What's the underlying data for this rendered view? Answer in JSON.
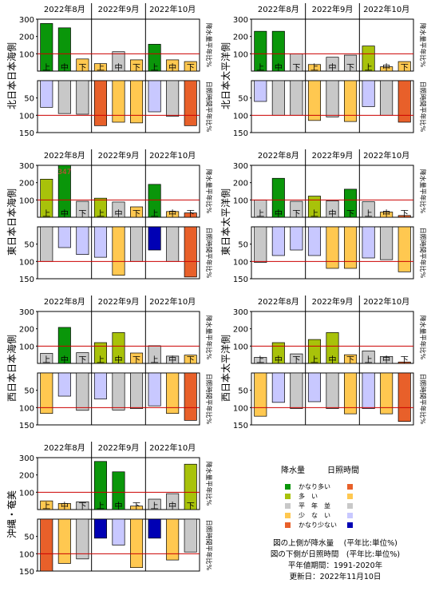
{
  "colors": {
    "very_high": "#0a960a",
    "high": "#a8c20a",
    "normal": "#c8c8c8",
    "low": "#ffc850",
    "very_low": "#e8602a",
    "low_sun": "#c8c8ff",
    "very_low_sun": "#0000b4",
    "normal_line": "#cc0000"
  },
  "legend": {
    "header_precip": "降水量",
    "header_sun": "日照時間",
    "items": [
      {
        "label": "かなり多い",
        "precip": "very_high",
        "sun": "very_low"
      },
      {
        "label": "多　い",
        "precip": "high",
        "sun": "low"
      },
      {
        "label": "平　年　並",
        "precip": "normal",
        "sun": "normal"
      },
      {
        "label": "少　な　い",
        "precip": "low",
        "sun": "low_sun"
      },
      {
        "label": "かなり少ない",
        "precip": "very_low",
        "sun": "very_low_sun"
      }
    ],
    "notes": [
      "図の上側が降水量　 (平年比:単位%)",
      "図の下側が日照時間　(平年比:単位%)",
      "平年値期間：1991-2020年",
      "更新日：2022年11月10日"
    ]
  },
  "chart_data": [
    {
      "type": "bar",
      "region": "北日本日本海側",
      "months": [
        "2022年8月",
        "2022年9月",
        "2022年10月"
      ],
      "categories": [
        "上",
        "中",
        "下",
        "上",
        "中",
        "下",
        "上",
        "中",
        "下"
      ],
      "precip_axis_label": "降水量平年比%",
      "sun_axis_label": "日照時間平年比%",
      "precip_ticks": [
        100,
        200,
        300
      ],
      "sun_ticks": [
        50,
        100,
        150
      ],
      "precip_ylim": [
        0,
        300
      ],
      "sun_ylim": [
        0,
        150
      ],
      "normal_value": 100,
      "precip": [
        {
          "value": 275,
          "cls": "very_high"
        },
        {
          "value": 250,
          "cls": "very_high"
        },
        {
          "value": 70,
          "cls": "low"
        },
        {
          "value": 43,
          "cls": "low"
        },
        {
          "value": 112,
          "cls": "normal"
        },
        {
          "value": 65,
          "cls": "low"
        },
        {
          "value": 155,
          "cls": "very_high"
        },
        {
          "value": 65,
          "cls": "low"
        },
        {
          "value": 55,
          "cls": "low"
        }
      ],
      "sun": [
        {
          "value": 77,
          "cls": "low_sun"
        },
        {
          "value": 95,
          "cls": "normal"
        },
        {
          "value": 97,
          "cls": "normal"
        },
        {
          "value": 130,
          "cls": "very_low"
        },
        {
          "value": 120,
          "cls": "low"
        },
        {
          "value": 122,
          "cls": "low"
        },
        {
          "value": 90,
          "cls": "low_sun"
        },
        {
          "value": 103,
          "cls": "normal"
        },
        {
          "value": 130,
          "cls": "very_low"
        }
      ]
    },
    {
      "type": "bar",
      "region": "北日本太平洋側",
      "months": [
        "2022年8月",
        "2022年9月",
        "2022年10月"
      ],
      "categories": [
        "上",
        "中",
        "下",
        "上",
        "中",
        "下",
        "上",
        "中",
        "下"
      ],
      "precip_axis_label": "降水量平年比%",
      "sun_axis_label": "日照時間平年比%",
      "precip_ticks": [
        100,
        200,
        300
      ],
      "sun_ticks": [
        50,
        100,
        150
      ],
      "precip_ylim": [
        0,
        300
      ],
      "sun_ylim": [
        0,
        150
      ],
      "normal_value": 100,
      "precip": [
        {
          "value": 230,
          "cls": "very_high"
        },
        {
          "value": 230,
          "cls": "very_high"
        },
        {
          "value": 100,
          "cls": "normal"
        },
        {
          "value": 38,
          "cls": "low"
        },
        {
          "value": 80,
          "cls": "normal"
        },
        {
          "value": 92,
          "cls": "normal"
        },
        {
          "value": 145,
          "cls": "high"
        },
        {
          "value": 25,
          "cls": "low"
        },
        {
          "value": 55,
          "cls": "low"
        }
      ],
      "sun": [
        {
          "value": 60,
          "cls": "low_sun"
        },
        {
          "value": 100,
          "cls": "normal"
        },
        {
          "value": 100,
          "cls": "normal"
        },
        {
          "value": 115,
          "cls": "low"
        },
        {
          "value": 105,
          "cls": "normal"
        },
        {
          "value": 118,
          "cls": "low"
        },
        {
          "value": 75,
          "cls": "low_sun"
        },
        {
          "value": 100,
          "cls": "normal"
        },
        {
          "value": 120,
          "cls": "very_low"
        }
      ]
    },
    {
      "type": "bar",
      "region": "東日本日本海側",
      "months": [
        "2022年8月",
        "2022年9月",
        "2022年10月"
      ],
      "categories": [
        "上",
        "中",
        "下",
        "上",
        "中",
        "下",
        "上",
        "中",
        "下"
      ],
      "precip_axis_label": "降水量平年比%",
      "sun_axis_label": "日照時間平年比%",
      "precip_ticks": [
        100,
        200,
        300
      ],
      "sun_ticks": [
        50,
        100,
        150
      ],
      "precip_ylim": [
        0,
        300
      ],
      "sun_ylim": [
        0,
        150
      ],
      "normal_value": 100,
      "overflow_label": "347",
      "precip": [
        {
          "value": 220,
          "cls": "high"
        },
        {
          "value": 347,
          "cls": "very_high"
        },
        {
          "value": 92,
          "cls": "normal"
        },
        {
          "value": 110,
          "cls": "high"
        },
        {
          "value": 88,
          "cls": "normal"
        },
        {
          "value": 60,
          "cls": "low"
        },
        {
          "value": 190,
          "cls": "very_high"
        },
        {
          "value": 33,
          "cls": "low"
        },
        {
          "value": 25,
          "cls": "very_low"
        }
      ],
      "sun": [
        {
          "value": 100,
          "cls": "normal"
        },
        {
          "value": 60,
          "cls": "low_sun"
        },
        {
          "value": 80,
          "cls": "low_sun"
        },
        {
          "value": 88,
          "cls": "low_sun"
        },
        {
          "value": 140,
          "cls": "low"
        },
        {
          "value": 100,
          "cls": "normal"
        },
        {
          "value": 67,
          "cls": "very_low_sun"
        },
        {
          "value": 100,
          "cls": "normal"
        },
        {
          "value": 145,
          "cls": "very_low"
        }
      ]
    },
    {
      "type": "bar",
      "region": "東日本太平洋側",
      "months": [
        "2022年8月",
        "2022年9月",
        "2022年10月"
      ],
      "categories": [
        "上",
        "中",
        "下",
        "上",
        "中",
        "下",
        "上",
        "中",
        "下"
      ],
      "precip_axis_label": "降水量平年比%",
      "sun_axis_label": "日照時間平年比%",
      "precip_ticks": [
        100,
        200,
        300
      ],
      "sun_ticks": [
        50,
        100,
        150
      ],
      "precip_ylim": [
        0,
        300
      ],
      "sun_ylim": [
        0,
        150
      ],
      "normal_value": 100,
      "precip": [
        {
          "value": 100,
          "cls": "normal"
        },
        {
          "value": 225,
          "cls": "very_high"
        },
        {
          "value": 92,
          "cls": "normal"
        },
        {
          "value": 122,
          "cls": "high"
        },
        {
          "value": 95,
          "cls": "normal"
        },
        {
          "value": 162,
          "cls": "very_high"
        },
        {
          "value": 90,
          "cls": "normal"
        },
        {
          "value": 30,
          "cls": "low"
        },
        {
          "value": 10,
          "cls": "very_low"
        }
      ],
      "sun": [
        {
          "value": 103,
          "cls": "normal"
        },
        {
          "value": 83,
          "cls": "low_sun"
        },
        {
          "value": 67,
          "cls": "low_sun"
        },
        {
          "value": 83,
          "cls": "low_sun"
        },
        {
          "value": 120,
          "cls": "low"
        },
        {
          "value": 120,
          "cls": "low"
        },
        {
          "value": 90,
          "cls": "low_sun"
        },
        {
          "value": 95,
          "cls": "normal"
        },
        {
          "value": 130,
          "cls": "low"
        }
      ]
    },
    {
      "type": "bar",
      "region": "西日本日本海側",
      "months": [
        "2022年8月",
        "2022年9月",
        "2022年10月"
      ],
      "categories": [
        "上",
        "中",
        "下",
        "上",
        "中",
        "下",
        "上",
        "中",
        "下"
      ],
      "precip_axis_label": "降水量平年比%",
      "sun_axis_label": "日照時間平年比%",
      "precip_ticks": [
        100,
        200,
        300
      ],
      "sun_ticks": [
        50,
        100,
        150
      ],
      "precip_ylim": [
        0,
        300
      ],
      "sun_ylim": [
        0,
        150
      ],
      "normal_value": 100,
      "precip": [
        {
          "value": 58,
          "cls": "normal"
        },
        {
          "value": 208,
          "cls": "very_high"
        },
        {
          "value": 62,
          "cls": "normal"
        },
        {
          "value": 120,
          "cls": "high"
        },
        {
          "value": 178,
          "cls": "high"
        },
        {
          "value": 60,
          "cls": "low"
        },
        {
          "value": 102,
          "cls": "normal"
        },
        {
          "value": 42,
          "cls": "normal"
        },
        {
          "value": 48,
          "cls": "low"
        }
      ],
      "sun": [
        {
          "value": 117,
          "cls": "low"
        },
        {
          "value": 67,
          "cls": "low_sun"
        },
        {
          "value": 108,
          "cls": "normal"
        },
        {
          "value": 75,
          "cls": "low_sun"
        },
        {
          "value": 107,
          "cls": "normal"
        },
        {
          "value": 103,
          "cls": "normal"
        },
        {
          "value": 95,
          "cls": "low_sun"
        },
        {
          "value": 117,
          "cls": "low"
        },
        {
          "value": 137,
          "cls": "very_low"
        }
      ]
    },
    {
      "type": "bar",
      "region": "西日本太平洋側",
      "months": [
        "2022年8月",
        "2022年9月",
        "2022年10月"
      ],
      "categories": [
        "上",
        "中",
        "下",
        "上",
        "中",
        "下",
        "上",
        "中",
        "下"
      ],
      "precip_axis_label": "降水量平年比%",
      "sun_axis_label": "日照時間平年比%",
      "precip_ticks": [
        100,
        200,
        300
      ],
      "sun_ticks": [
        50,
        100,
        150
      ],
      "precip_ylim": [
        0,
        300
      ],
      "sun_ylim": [
        0,
        150
      ],
      "normal_value": 100,
      "precip": [
        {
          "value": 35,
          "cls": "normal"
        },
        {
          "value": 120,
          "cls": "high"
        },
        {
          "value": 55,
          "cls": "normal"
        },
        {
          "value": 138,
          "cls": "high"
        },
        {
          "value": 178,
          "cls": "high"
        },
        {
          "value": 50,
          "cls": "low"
        },
        {
          "value": 72,
          "cls": "normal"
        },
        {
          "value": 40,
          "cls": "normal"
        },
        {
          "value": 8,
          "cls": "very_low"
        }
      ],
      "sun": [
        {
          "value": 125,
          "cls": "low"
        },
        {
          "value": 85,
          "cls": "low_sun"
        },
        {
          "value": 103,
          "cls": "normal"
        },
        {
          "value": 83,
          "cls": "low_sun"
        },
        {
          "value": 103,
          "cls": "normal"
        },
        {
          "value": 118,
          "cls": "low"
        },
        {
          "value": 103,
          "cls": "low_sun"
        },
        {
          "value": 118,
          "cls": "low"
        },
        {
          "value": 140,
          "cls": "very_low"
        }
      ]
    },
    {
      "type": "bar",
      "region": "沖縄・奄美",
      "months": [
        "2022年8月",
        "2022年9月",
        "2022年10月"
      ],
      "categories": [
        "上",
        "中",
        "下",
        "上",
        "中",
        "下",
        "上",
        "中",
        "下"
      ],
      "precip_axis_label": "降水量平年比%",
      "sun_axis_label": "日照時間平年比%",
      "precip_ticks": [
        100,
        200,
        300
      ],
      "sun_ticks": [
        50,
        100,
        150
      ],
      "precip_ylim": [
        0,
        300
      ],
      "sun_ylim": [
        0,
        150
      ],
      "normal_value": 100,
      "precip": [
        {
          "value": 50,
          "cls": "low"
        },
        {
          "value": 35,
          "cls": "low"
        },
        {
          "value": 45,
          "cls": "normal"
        },
        {
          "value": 278,
          "cls": "very_high"
        },
        {
          "value": 218,
          "cls": "very_high"
        },
        {
          "value": 20,
          "cls": "low"
        },
        {
          "value": 60,
          "cls": "normal"
        },
        {
          "value": 92,
          "cls": "normal"
        },
        {
          "value": 262,
          "cls": "high"
        }
      ],
      "sun": [
        {
          "value": 150,
          "cls": "very_low"
        },
        {
          "value": 128,
          "cls": "low"
        },
        {
          "value": 115,
          "cls": "normal"
        },
        {
          "value": 55,
          "cls": "very_low_sun"
        },
        {
          "value": 75,
          "cls": "low_sun"
        },
        {
          "value": 140,
          "cls": "low"
        },
        {
          "value": 55,
          "cls": "very_low_sun"
        },
        {
          "value": 118,
          "cls": "low"
        },
        {
          "value": 95,
          "cls": "normal"
        }
      ]
    }
  ]
}
